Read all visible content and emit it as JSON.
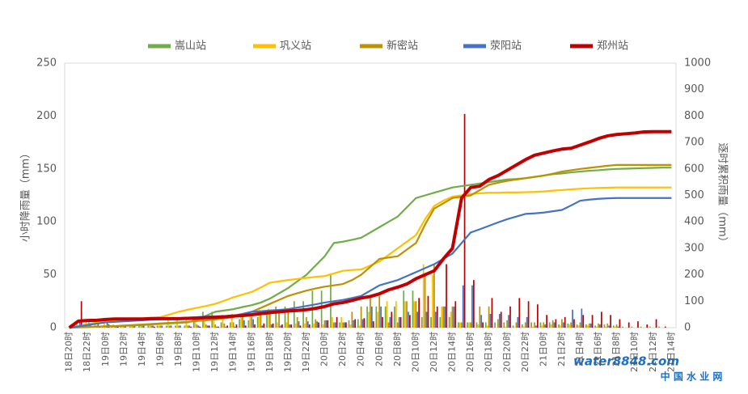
{
  "chart_data": {
    "type": "bar-line",
    "y_label": "小时降雨量（mm）",
    "y2_label": "逐时累积雨量（mm）",
    "watermark": {
      "brand": "water8848.com",
      "name": "中 国 水 业 网"
    },
    "categories": [
      "18日20时",
      null,
      "18日22时",
      null,
      "19日0时",
      null,
      "19日2时",
      null,
      "19日4时",
      null,
      "19日6时",
      null,
      "19日8时",
      null,
      "19日10时",
      null,
      "19日12时",
      null,
      "19日14时",
      null,
      "19日16时",
      null,
      "19日18时",
      null,
      "19日20时",
      null,
      "19日22时",
      null,
      "20日0时",
      null,
      "20日2时",
      null,
      "20日4时",
      null,
      "20日6时",
      null,
      "20日8时",
      null,
      "20日10时",
      null,
      "20日12时",
      null,
      "20日14时",
      null,
      "20日16时",
      null,
      "20日18时",
      null,
      "20日20时",
      null,
      "20日22时",
      null,
      "21日0时",
      null,
      "21日2时",
      null,
      "21日4时",
      null,
      "21日6时",
      null,
      "21日8时",
      null,
      "21日10时",
      null,
      "21日12时",
      null,
      "21日14时"
    ],
    "ylim": [
      0,
      250
    ],
    "yticks": [
      0,
      50,
      100,
      150,
      200,
      250
    ],
    "y2lim": [
      0,
      1000
    ],
    "y2ticks": [
      0,
      100,
      200,
      300,
      400,
      500,
      600,
      700,
      800,
      900,
      1000
    ],
    "series": [
      {
        "name": "嵩山站",
        "color": "#70ad47",
        "values": [
          0,
          2,
          1,
          1,
          1,
          1,
          1,
          1,
          2,
          2,
          2,
          2,
          2,
          2,
          10,
          15,
          15,
          5,
          5,
          8,
          7,
          10,
          15,
          20,
          20,
          25,
          25,
          35,
          35,
          50,
          5,
          7,
          8,
          20,
          20,
          20,
          20,
          35,
          35,
          10,
          10,
          10,
          10,
          5,
          5,
          5,
          5,
          5,
          5,
          2,
          3,
          5,
          5,
          5,
          3,
          4,
          3,
          3,
          2,
          3,
          2,
          1,
          1,
          1,
          1,
          1,
          0
        ],
        "cumulative_values": [
          0,
          2,
          3,
          4,
          5,
          6,
          7,
          8,
          10,
          12,
          14,
          16,
          18,
          20,
          30,
          45,
          60,
          65,
          70,
          78,
          85,
          95,
          110,
          130,
          150,
          175,
          200,
          235,
          270,
          320,
          325,
          332,
          340,
          360,
          380,
          400,
          420,
          455,
          490,
          500,
          510,
          520,
          530,
          535,
          540,
          545,
          550,
          555,
          560,
          562,
          565,
          570,
          575,
          580,
          583,
          587,
          590,
          593,
          595,
          598,
          600,
          601,
          602,
          603,
          604,
          605,
          605
        ]
      },
      {
        "name": "巩义站",
        "color": "#ffc000",
        "values": [
          0,
          5,
          7,
          8,
          5,
          3,
          2,
          3,
          2,
          3,
          2,
          10,
          10,
          8,
          7,
          7,
          8,
          12,
          13,
          10,
          10,
          17,
          18,
          5,
          5,
          4,
          4,
          4,
          3,
          10,
          10,
          3,
          2,
          15,
          15,
          25,
          25,
          25,
          25,
          60,
          50,
          20,
          15,
          5,
          5,
          3,
          2,
          0,
          1,
          0,
          1,
          1,
          2,
          3,
          2,
          3,
          2,
          2,
          1,
          1,
          1,
          0,
          0,
          0,
          0,
          0,
          0
        ],
        "cumulative_values": [
          0,
          5,
          12,
          20,
          25,
          28,
          30,
          33,
          35,
          38,
          40,
          50,
          60,
          68,
          75,
          82,
          90,
          102,
          115,
          125,
          135,
          152,
          170,
          175,
          180,
          184,
          188,
          192,
          195,
          205,
          215,
          218,
          220,
          235,
          250,
          275,
          300,
          325,
          350,
          410,
          460,
          480,
          495,
          500,
          505,
          508,
          510,
          510,
          511,
          511,
          512,
          513,
          515,
          518,
          520,
          523,
          525,
          527,
          528,
          529,
          530,
          530,
          530,
          530,
          530,
          530,
          530
        ]
      },
      {
        "name": "新密站",
        "color": "#bf9000",
        "values": [
          0,
          1,
          1,
          2,
          1,
          1,
          2,
          2,
          2,
          2,
          2,
          2,
          2,
          2,
          3,
          3,
          3,
          4,
          5,
          10,
          10,
          15,
          15,
          15,
          15,
          10,
          10,
          8,
          7,
          5,
          5,
          15,
          20,
          30,
          30,
          5,
          5,
          25,
          25,
          50,
          60,
          20,
          20,
          5,
          5,
          20,
          20,
          8,
          7,
          5,
          5,
          5,
          5,
          7,
          8,
          5,
          5,
          4,
          4,
          4,
          3,
          0,
          0,
          0,
          0,
          0,
          0
        ],
        "cumulative_values": [
          0,
          1,
          2,
          4,
          5,
          6,
          8,
          10,
          12,
          14,
          16,
          18,
          20,
          22,
          25,
          28,
          31,
          35,
          40,
          50,
          60,
          75,
          90,
          105,
          120,
          130,
          140,
          148,
          155,
          160,
          165,
          180,
          200,
          230,
          260,
          265,
          270,
          295,
          320,
          390,
          450,
          470,
          490,
          495,
          500,
          520,
          540,
          548,
          555,
          560,
          565,
          570,
          575,
          582,
          590,
          595,
          600,
          604,
          608,
          612,
          615,
          615,
          615,
          615,
          615,
          615,
          615
        ]
      },
      {
        "name": "荥阳站",
        "color": "#4472c4",
        "values": [
          0,
          5,
          5,
          5,
          5,
          2,
          2,
          2,
          2,
          2,
          2,
          2,
          2,
          2,
          2,
          2,
          1,
          1,
          1,
          7,
          8,
          2,
          3,
          2,
          3,
          6,
          6,
          6,
          7,
          5,
          5,
          7,
          8,
          20,
          20,
          10,
          10,
          15,
          15,
          15,
          15,
          20,
          20,
          40,
          40,
          12,
          13,
          13,
          12,
          10,
          10,
          2,
          3,
          5,
          5,
          17,
          18,
          4,
          3,
          2,
          1,
          0,
          0,
          0,
          0,
          0,
          0
        ],
        "cumulative_values": [
          0,
          5,
          10,
          15,
          20,
          22,
          24,
          26,
          28,
          30,
          32,
          34,
          36,
          38,
          40,
          42,
          43,
          44,
          45,
          52,
          60,
          62,
          65,
          67,
          70,
          76,
          82,
          88,
          95,
          100,
          105,
          112,
          120,
          140,
          160,
          170,
          180,
          195,
          210,
          225,
          240,
          260,
          280,
          320,
          360,
          372,
          385,
          398,
          410,
          420,
          430,
          432,
          435,
          440,
          445,
          462,
          480,
          484,
          487,
          489,
          490,
          490,
          490,
          490,
          490,
          490,
          490
        ]
      },
      {
        "name": "郑州站",
        "color": "#c00000",
        "values": [
          0,
          25,
          2,
          1,
          3,
          2,
          0,
          0,
          0,
          1,
          0,
          0,
          0,
          1,
          1,
          2,
          1,
          2,
          3,
          2,
          3,
          4,
          4,
          3,
          3,
          2,
          3,
          5,
          7,
          10,
          5,
          8,
          9,
          6,
          10,
          15,
          10,
          12,
          28,
          30,
          20,
          60,
          25,
          202,
          45,
          5,
          28,
          15,
          20,
          28,
          25,
          22,
          12,
          8,
          10,
          8,
          12,
          12,
          15,
          12,
          8,
          5,
          6,
          3,
          8,
          1,
          0
        ],
        "cumulative_values": [
          0,
          25,
          27,
          28,
          31,
          33,
          33,
          33,
          33,
          34,
          34,
          34,
          34,
          35,
          36,
          38,
          39,
          41,
          44,
          46,
          49,
          53,
          57,
          60,
          63,
          65,
          68,
          73,
          80,
          90,
          95,
          103,
          112,
          118,
          128,
          143,
          153,
          165,
          185,
          200,
          215,
          260,
          300,
          490,
          530,
          535,
          560,
          575,
          595,
          615,
          635,
          652,
          660,
          668,
          675,
          678,
          690,
          702,
          715,
          725,
          730,
          733,
          736,
          740,
          741,
          741,
          741
        ]
      }
    ]
  }
}
